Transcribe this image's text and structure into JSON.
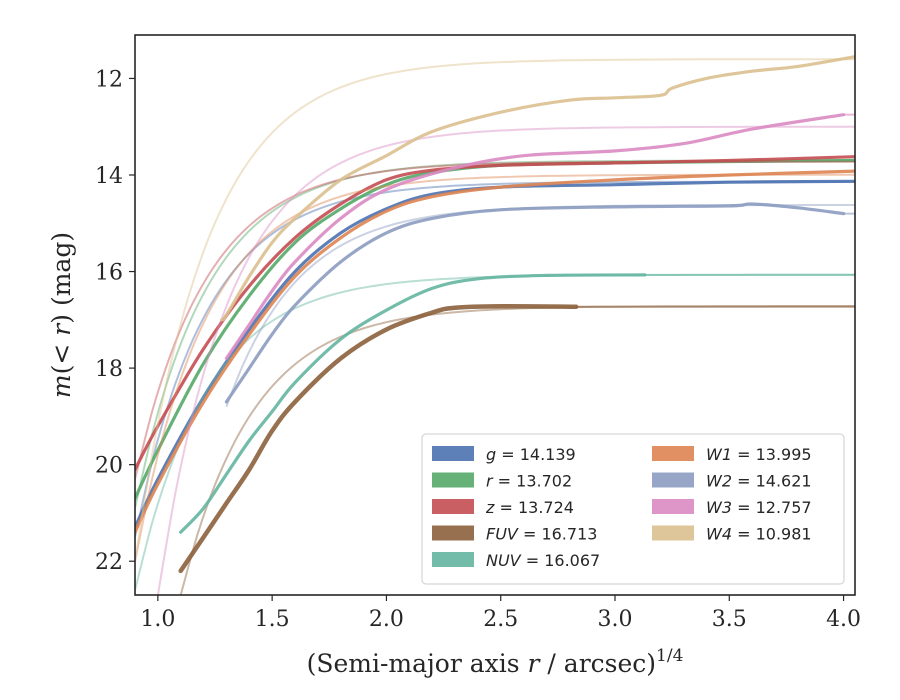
{
  "chart_data": {
    "type": "line",
    "title": "",
    "xlabel": "(Semi-major axis r / arcsec)",
    "xlabel_parts": {
      "before": "(Semi-major axis ",
      "var": "r",
      "after": " / arcsec)",
      "sup": "1/4"
    },
    "ylabel": "m(< r) (mag)",
    "ylabel_parts": {
      "m": "m",
      "open": "(",
      "lt": "< ",
      "r": "r",
      "close": ")",
      "unit": " (mag)"
    },
    "xlim": [
      0.9,
      4.05
    ],
    "ylim": [
      22.7,
      11.1
    ],
    "y_inverted": true,
    "xticks": [
      1.0,
      1.5,
      2.0,
      2.5,
      3.0,
      3.5,
      4.0
    ],
    "xtick_labels": [
      "1.0",
      "1.5",
      "2.0",
      "2.5",
      "3.0",
      "3.5",
      "4.0"
    ],
    "yticks": [
      12,
      14,
      16,
      18,
      20,
      22
    ],
    "ytick_labels": [
      "12",
      "14",
      "16",
      "18",
      "20",
      "22"
    ],
    "grid": false,
    "legend_placement": "lower-right",
    "series": [
      {
        "name": "g",
        "label_num": "= 14.139",
        "color": "#4c72b0",
        "asymptote": 14.139,
        "x_start": 0.9,
        "y_start": 21.5,
        "x": [
          0.9,
          1.0,
          1.2,
          1.4,
          1.6,
          1.8,
          2.0,
          2.2,
          2.5,
          3.0,
          3.5,
          4.05
        ],
        "y": [
          21.3,
          20.3,
          18.6,
          17.2,
          16.0,
          15.2,
          14.7,
          14.4,
          14.25,
          14.2,
          14.15,
          14.13
        ]
      },
      {
        "name": "r",
        "label_num": "= 13.702",
        "color": "#55a868",
        "asymptote": 13.702,
        "x_start": 0.9,
        "y_start": 20.9,
        "x": [
          0.9,
          1.0,
          1.2,
          1.4,
          1.6,
          1.8,
          2.0,
          2.2,
          2.5,
          3.0,
          3.5,
          4.05
        ],
        "y": [
          20.7,
          19.7,
          17.9,
          16.5,
          15.4,
          14.7,
          14.2,
          13.95,
          13.8,
          13.75,
          13.72,
          13.7
        ]
      },
      {
        "name": "z",
        "label_num": "= 13.724",
        "color": "#c44e52",
        "asymptote": 13.724,
        "x_start": 0.9,
        "y_start": 20.3,
        "x": [
          0.9,
          1.0,
          1.2,
          1.4,
          1.6,
          1.8,
          2.0,
          2.2,
          2.5,
          3.0,
          3.5,
          4.05
        ],
        "y": [
          20.1,
          19.2,
          17.6,
          16.3,
          15.3,
          14.6,
          14.1,
          13.9,
          13.8,
          13.75,
          13.7,
          13.62
        ]
      },
      {
        "name": "FUV",
        "label_num": "= 16.713",
        "color": "#8c613c",
        "asymptote": 16.713,
        "x_start": 1.1,
        "y_start": 22.7,
        "x": [
          1.1,
          1.2,
          1.3,
          1.4,
          1.5,
          1.6,
          1.8,
          2.0,
          2.2,
          2.3,
          2.5,
          2.83
        ],
        "y": [
          22.2,
          21.5,
          20.8,
          20.1,
          19.3,
          18.7,
          17.8,
          17.2,
          16.85,
          16.75,
          16.72,
          16.73
        ]
      },
      {
        "name": "NUV",
        "label_num": "= 16.067",
        "color": "#64b5a0",
        "asymptote": 16.067,
        "x_start": 0.9,
        "y_start": 22.6,
        "x": [
          1.1,
          1.2,
          1.3,
          1.4,
          1.5,
          1.6,
          1.8,
          2.0,
          2.2,
          2.4,
          2.7,
          3.13
        ],
        "y": [
          21.4,
          20.9,
          20.2,
          19.5,
          18.9,
          18.3,
          17.4,
          16.8,
          16.35,
          16.15,
          16.08,
          16.07
        ]
      },
      {
        "name": "W1",
        "label_num": "= 13.995",
        "color": "#dd8452",
        "asymptote": 13.995,
        "x_start": 0.9,
        "y_start": 22.0,
        "x": [
          0.9,
          1.0,
          1.2,
          1.4,
          1.6,
          1.8,
          2.0,
          2.2,
          2.5,
          3.0,
          3.5,
          4.05
        ],
        "y": [
          21.4,
          20.4,
          18.7,
          17.3,
          16.1,
          15.3,
          14.75,
          14.45,
          14.25,
          14.1,
          14.0,
          13.92
        ]
      },
      {
        "name": "W2",
        "label_num": "= 14.621",
        "color": "#8c9cc0",
        "asymptote": 14.621,
        "x_start": 1.3,
        "y_start": 18.8,
        "x": [
          1.3,
          1.4,
          1.5,
          1.6,
          1.8,
          2.0,
          2.2,
          2.5,
          3.0,
          3.5,
          3.6,
          3.8,
          4.0
        ],
        "y": [
          18.7,
          18.0,
          17.3,
          16.7,
          15.8,
          15.2,
          14.9,
          14.72,
          14.66,
          14.64,
          14.6,
          14.68,
          14.8
        ]
      },
      {
        "name": "W3",
        "label_num": "= 12.757",
        "color": "#da8bc3",
        "asymptote": 13.0,
        "x_start": 1.0,
        "y_start": 22.7,
        "x": [
          1.3,
          1.4,
          1.5,
          1.6,
          1.8,
          2.0,
          2.3,
          2.6,
          3.0,
          3.3,
          3.6,
          4.0
        ],
        "y": [
          17.8,
          17.1,
          16.4,
          15.8,
          14.9,
          14.3,
          13.85,
          13.6,
          13.5,
          13.35,
          13.05,
          12.75
        ]
      },
      {
        "name": "W4",
        "label_num": "= 10.981",
        "color": "#dcc08f",
        "asymptote": 11.6,
        "x_start": 0.9,
        "y_start": 22.0,
        "x": [
          1.28,
          1.3,
          1.4,
          1.5,
          1.6,
          1.8,
          2.0,
          2.2,
          2.5,
          2.8,
          3.0,
          3.2,
          3.25,
          3.4,
          3.6,
          3.8,
          4.05
        ],
        "y": [
          17.0,
          16.9,
          16.1,
          15.4,
          14.9,
          14.1,
          13.6,
          13.1,
          12.7,
          12.45,
          12.4,
          12.35,
          12.2,
          12.0,
          11.85,
          11.75,
          11.55
        ]
      }
    ]
  }
}
